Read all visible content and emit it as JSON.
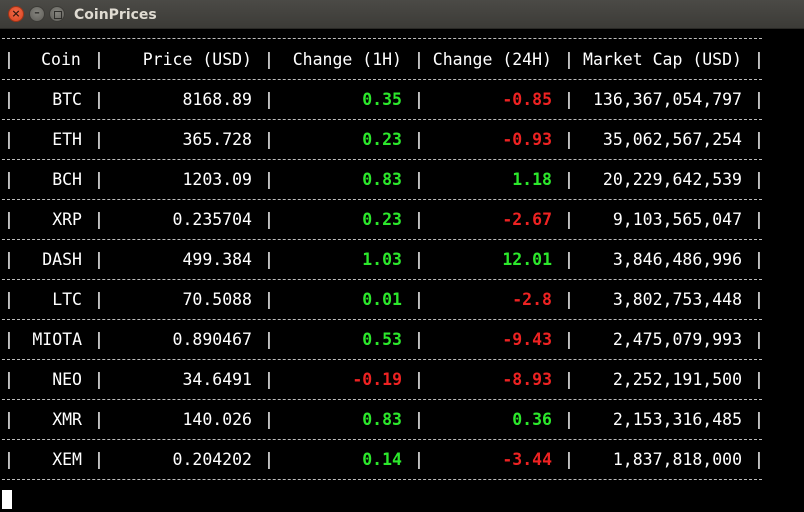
{
  "window": {
    "title": "CoinPrices"
  },
  "table": {
    "headers": [
      "Coin",
      "Price (USD)",
      "Change (1H)",
      "Change (24H)",
      "Market Cap (USD)"
    ],
    "rows": [
      {
        "coin": "BTC",
        "price": "8168.89",
        "change_1h": "0.35",
        "change_24h": "-0.85",
        "market_cap": "136,367,054,797"
      },
      {
        "coin": "ETH",
        "price": "365.728",
        "change_1h": "0.23",
        "change_24h": "-0.93",
        "market_cap": "35,062,567,254"
      },
      {
        "coin": "BCH",
        "price": "1203.09",
        "change_1h": "0.83",
        "change_24h": "1.18",
        "market_cap": "20,229,642,539"
      },
      {
        "coin": "XRP",
        "price": "0.235704",
        "change_1h": "0.23",
        "change_24h": "-2.67",
        "market_cap": "9,103,565,047"
      },
      {
        "coin": "DASH",
        "price": "499.384",
        "change_1h": "1.03",
        "change_24h": "12.01",
        "market_cap": "3,846,486,996"
      },
      {
        "coin": "LTC",
        "price": "70.5088",
        "change_1h": "0.01",
        "change_24h": "-2.8",
        "market_cap": "3,802,753,448"
      },
      {
        "coin": "MIOTA",
        "price": "0.890467",
        "change_1h": "0.53",
        "change_24h": "-9.43",
        "market_cap": "2,475,079,993"
      },
      {
        "coin": "NEO",
        "price": "34.6491",
        "change_1h": "-0.19",
        "change_24h": "-8.93",
        "market_cap": "2,252,191,500"
      },
      {
        "coin": "XMR",
        "price": "140.026",
        "change_1h": "0.83",
        "change_24h": "0.36",
        "market_cap": "2,153,316,485"
      },
      {
        "coin": "XEM",
        "price": "0.204202",
        "change_1h": "0.14",
        "change_24h": "-3.44",
        "market_cap": "1,837,818,000"
      }
    ]
  },
  "colors": {
    "positive": "#2ce82c",
    "negative": "#ee2222",
    "background": "#000000",
    "text": "#ffffff"
  }
}
